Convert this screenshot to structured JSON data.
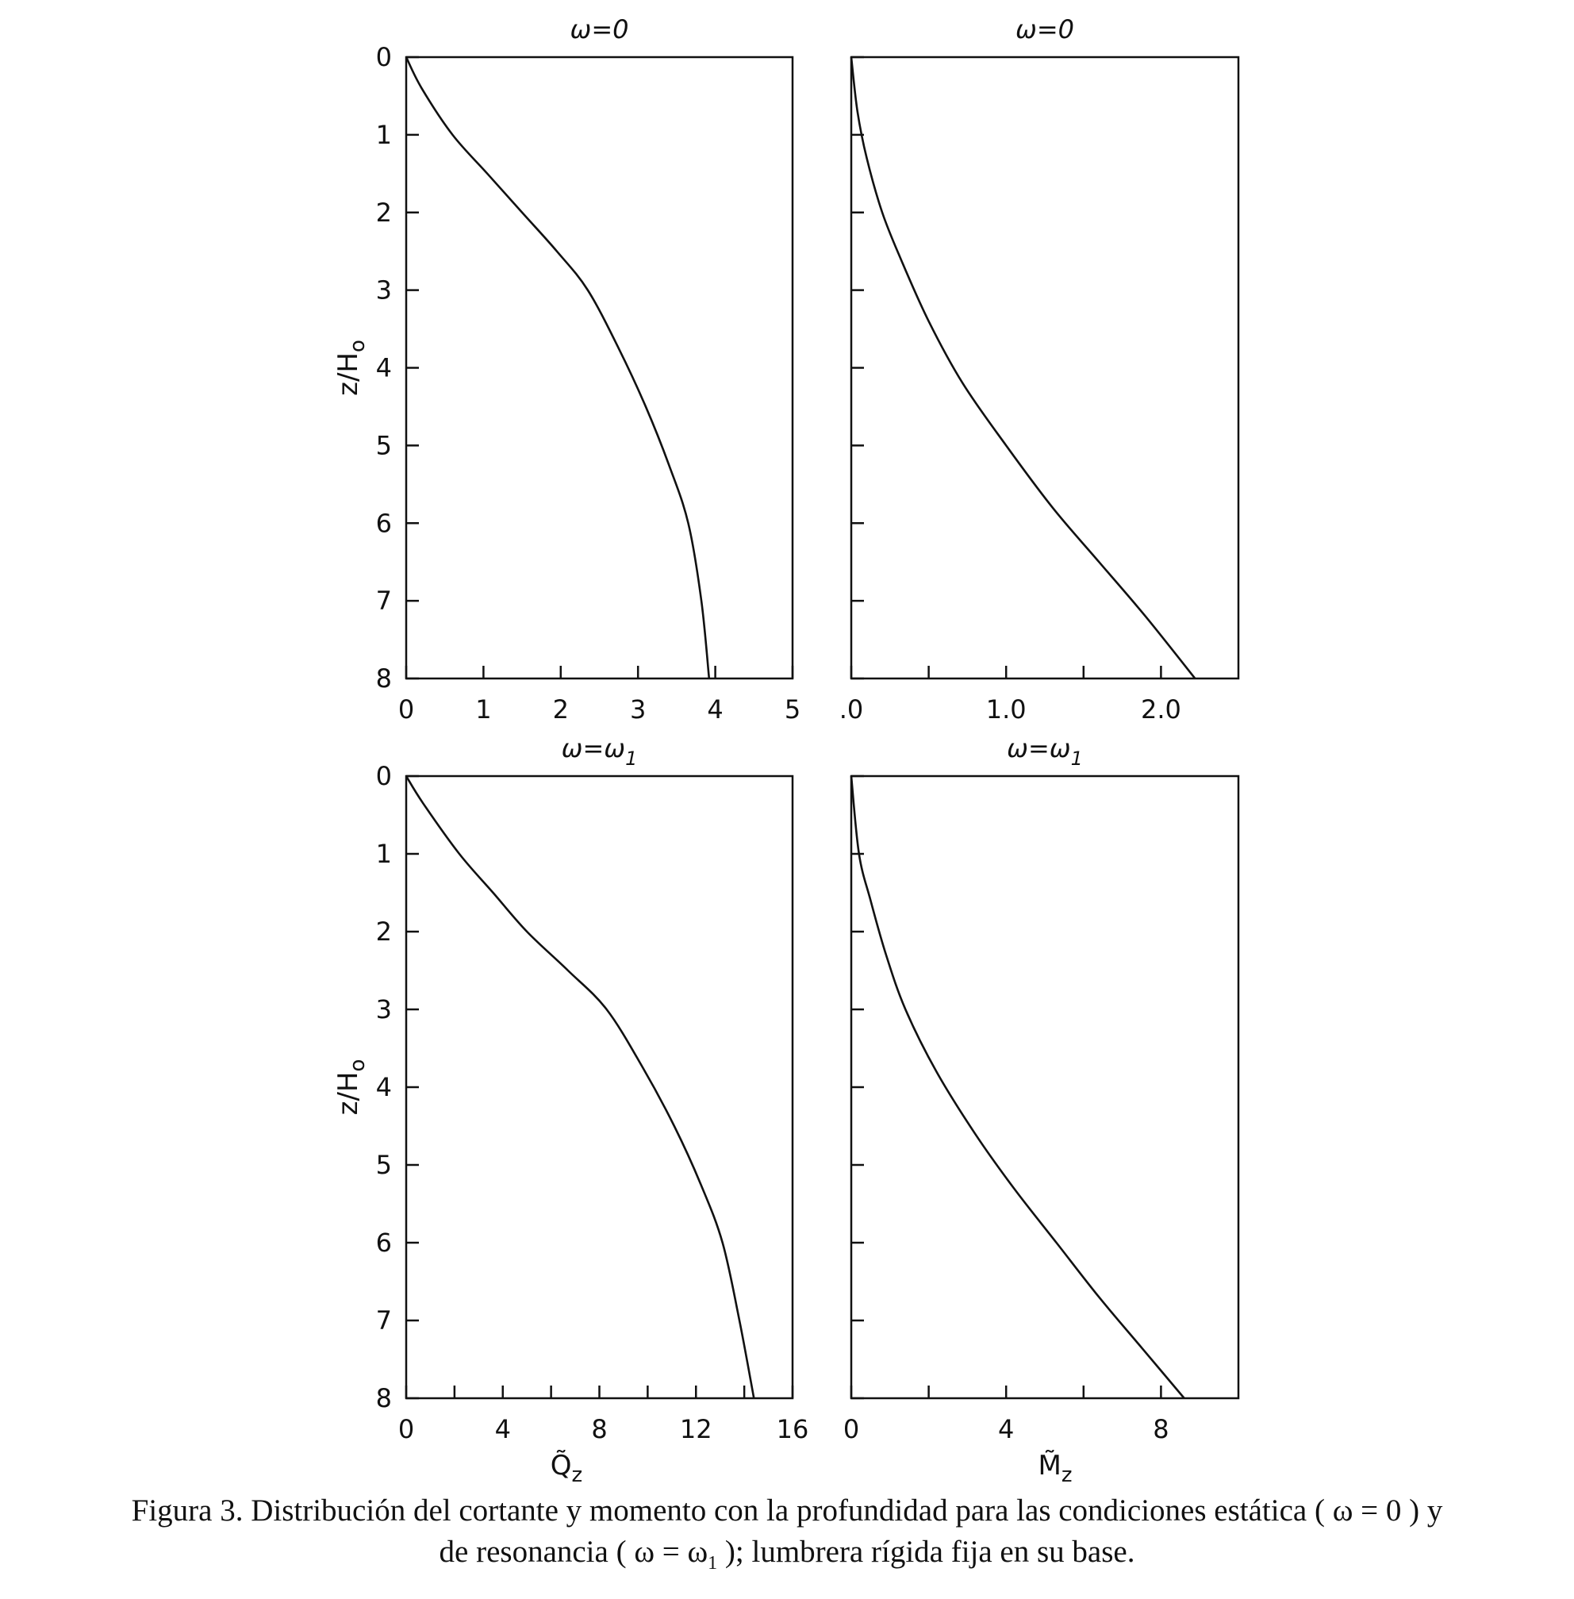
{
  "chart_data": [
    {
      "type": "line",
      "title": "ω=0",
      "xlabel": "",
      "ylabel": "z/H",
      "ylabel_sub": "o",
      "xlim": [
        0,
        5
      ],
      "ylim": [
        8,
        0
      ],
      "xticks": [
        0,
        1,
        2,
        3,
        4,
        5
      ],
      "xtick_labels": [
        "0",
        "1",
        "2",
        "3",
        "4",
        "5"
      ],
      "yticks": [
        0,
        1,
        2,
        3,
        4,
        5,
        6,
        7,
        8
      ],
      "ytick_labels": [
        "0",
        "1",
        "2",
        "3",
        "4",
        "5",
        "6",
        "7",
        "8"
      ],
      "grid": false,
      "series": [
        {
          "x": [
            0,
            0.2,
            0.6,
            1.05,
            1.5,
            1.95,
            2.35,
            2.75,
            3.1,
            3.4,
            3.65,
            3.82,
            3.92
          ],
          "y": [
            0,
            0.4,
            1,
            1.5,
            2,
            2.5,
            3,
            3.75,
            4.5,
            5.25,
            6,
            7,
            8
          ]
        }
      ]
    },
    {
      "type": "line",
      "title": "ω=0",
      "xlabel": "",
      "xlim": [
        0,
        2.5
      ],
      "ylim": [
        8,
        0
      ],
      "xticks": [
        0,
        0.5,
        1.0,
        1.5,
        2.0
      ],
      "xtick_labels": [
        ".0",
        "",
        "1.0",
        "",
        "2.0"
      ],
      "yticks": [
        0,
        1,
        2,
        3,
        4,
        5,
        6,
        7,
        8
      ],
      "grid": false,
      "series": [
        {
          "x": [
            0,
            0.04,
            0.1,
            0.2,
            0.32,
            0.5,
            0.72,
            1.0,
            1.3,
            1.6,
            1.9,
            2.22
          ],
          "y": [
            0,
            0.7,
            1.3,
            2,
            2.6,
            3.4,
            4.2,
            5,
            5.8,
            6.5,
            7.2,
            8
          ]
        }
      ]
    },
    {
      "type": "line",
      "title": "ω=ω",
      "title_sub": "1",
      "xlabel": "Q̃",
      "xlabel_sub": "z",
      "ylabel": "z/H",
      "ylabel_sub": "o",
      "xlim": [
        0,
        16
      ],
      "ylim": [
        8,
        0
      ],
      "xticks": [
        0,
        2,
        4,
        6,
        8,
        10,
        12,
        14,
        16
      ],
      "xtick_labels": [
        "0",
        "",
        "4",
        "",
        "8",
        "",
        "12",
        "",
        "16"
      ],
      "yticks": [
        0,
        1,
        2,
        3,
        4,
        5,
        6,
        7,
        8
      ],
      "ytick_labels": [
        "0",
        "1",
        "2",
        "3",
        "4",
        "5",
        "6",
        "7",
        "8"
      ],
      "grid": false,
      "series": [
        {
          "x": [
            0,
            0.7,
            2.2,
            3.6,
            5,
            6.7,
            8.3,
            9.8,
            11.1,
            12.2,
            13.1,
            13.8,
            14.4
          ],
          "y": [
            0,
            0.35,
            1,
            1.5,
            2,
            2.5,
            3,
            3.75,
            4.5,
            5.25,
            6,
            7,
            8
          ]
        }
      ]
    },
    {
      "type": "line",
      "title": "ω=ω",
      "title_sub": "1",
      "xlabel": "M̃",
      "xlabel_sub": "z",
      "xlim": [
        0,
        10
      ],
      "ylim": [
        8,
        0
      ],
      "xticks": [
        0,
        2,
        4,
        6,
        8
      ],
      "xtick_labels": [
        "0",
        "",
        "4",
        "",
        "8"
      ],
      "yticks": [
        0,
        1,
        2,
        3,
        4,
        5,
        6,
        7,
        8
      ],
      "grid": false,
      "series": [
        {
          "x": [
            0,
            0.2,
            0.5,
            0.9,
            1.4,
            2.2,
            3.2,
            4.2,
            5.3,
            6.4,
            7.5,
            8.6
          ],
          "y": [
            0,
            1,
            1.6,
            2.3,
            3,
            3.8,
            4.6,
            5.3,
            6,
            6.7,
            7.35,
            8
          ]
        }
      ]
    }
  ],
  "caption": {
    "line1": "Figura 3.  Distribución del cortante y momento con la profundidad para las condiciones estática ( ω = 0 ) y",
    "line2_prefix": "de resonancia ( ω = ω",
    "line2_sub": "1",
    "line2_suffix": " ); lumbrera rígida fija en su base."
  }
}
